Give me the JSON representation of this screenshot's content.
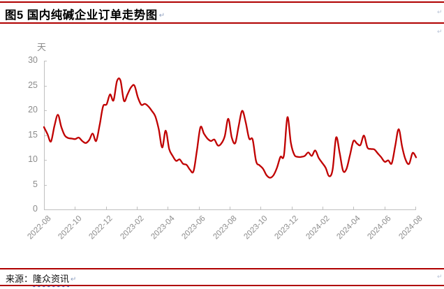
{
  "marks": {
    "pilcrow": "↵"
  },
  "colors": {
    "line": "#C00000",
    "rule": "#B00000",
    "axis": "#BFBFBF",
    "tick_label": "#8C8C8C",
    "squiggle_underline": "#3A5FCD"
  },
  "footer": {
    "source_label": "来源：",
    "source_name": "隆众资讯"
  },
  "chart_data": {
    "type": "line",
    "title": "图5  国内纯碱企业订单走势图",
    "unit_label": "天",
    "xlabel": "",
    "ylabel": "天",
    "ylim": [
      0,
      30
    ],
    "y_ticks": [
      0,
      5,
      10,
      15,
      20,
      25,
      30
    ],
    "grid": false,
    "legend_position": "none",
    "x_tick_labels": [
      "2022-08",
      "2022-10",
      "2022-12",
      "2023-02",
      "2023-04",
      "2023-06",
      "2023-08",
      "2023-10",
      "2023-12",
      "2024-02",
      "2024-04",
      "2024-06",
      "2024-08"
    ],
    "x_range_note": "weekly points from 2022-08 to 2024-08",
    "series": [
      {
        "name": "国内纯碱企业订单(天)",
        "color": "#C00000",
        "values": [
          16.6,
          15.2,
          13.7,
          16.8,
          19.1,
          16.6,
          14.9,
          14.4,
          14.3,
          14.2,
          14.5,
          13.8,
          13.4,
          14.0,
          15.3,
          13.8,
          17.0,
          20.8,
          21.2,
          23.2,
          22.0,
          25.9,
          26.0,
          21.9,
          23.2,
          24.6,
          25.0,
          22.6,
          21.1,
          21.3,
          20.8,
          19.9,
          18.8,
          16.2,
          12.5,
          15.9,
          12.2,
          10.8,
          9.8,
          10.1,
          9.2,
          9.0,
          8.0,
          7.7,
          12.0,
          16.6,
          15.3,
          14.3,
          13.8,
          14.1,
          12.9,
          13.3,
          14.8,
          18.3,
          14.5,
          13.4,
          16.9,
          19.9,
          17.6,
          14.3,
          14.1,
          9.7,
          8.9,
          8.2,
          6.9,
          6.4,
          6.9,
          8.4,
          10.6,
          10.9,
          18.6,
          13.4,
          11.0,
          10.6,
          10.6,
          10.8,
          11.5,
          10.8,
          11.9,
          10.4,
          9.4,
          8.4,
          6.7,
          8.0,
          14.5,
          11.5,
          7.8,
          8.2,
          11.0,
          13.8,
          13.3,
          13.0,
          14.9,
          12.5,
          12.2,
          12.1,
          11.3,
          10.5,
          9.6,
          9.9,
          9.3,
          12.8,
          16.2,
          12.6,
          10.0,
          9.2,
          11.4,
          10.5
        ]
      }
    ]
  }
}
